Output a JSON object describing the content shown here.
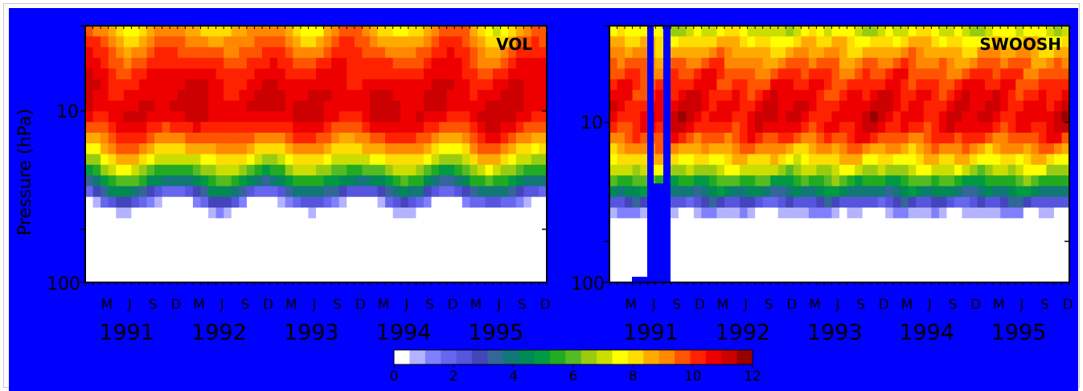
{
  "chart_data": [
    {
      "type": "heatmap",
      "panel": "left",
      "label": "VOL",
      "ylabel": "Pressure (hPa)",
      "y_scale": "log",
      "ylim": [
        100,
        3
      ],
      "y_tick_labels": [
        "10",
        "100"
      ],
      "month_labels": [
        "M",
        "J",
        "S",
        "D",
        "M",
        "J",
        "S",
        "D",
        "M",
        "J",
        "S",
        "D",
        "M",
        "J",
        "S",
        "D",
        "M",
        "J",
        "S",
        "D"
      ],
      "year_labels": [
        "1991",
        "1992",
        "1993",
        "1994",
        "1995"
      ],
      "x_range": [
        "1991-01",
        "1995-12"
      ]
    },
    {
      "type": "heatmap",
      "panel": "right",
      "label": "SWOOSH",
      "ylabel": "",
      "y_scale": "log",
      "ylim": [
        100,
        3
      ],
      "y_tick_labels": [
        "10",
        "100"
      ],
      "month_labels": [
        "M",
        "J",
        "S",
        "D",
        "M",
        "J",
        "S",
        "D",
        "M",
        "J",
        "S",
        "D",
        "M",
        "J",
        "S",
        "D",
        "M",
        "J",
        "S",
        "D"
      ],
      "year_labels": [
        "1991",
        "1992",
        "1993",
        "1994",
        "1995"
      ],
      "x_range": [
        "1991-01",
        "1995-12"
      ],
      "missing_data_note": "gap mid-1991"
    }
  ],
  "colorbar": {
    "ticks": [
      "0",
      "2",
      "4",
      "6",
      "8",
      "10",
      "12"
    ],
    "colors": [
      "#ffffff",
      "#b3b3ff",
      "#8080ff",
      "#6666ee",
      "#5555dd",
      "#4444bb",
      "#336699",
      "#117777",
      "#008855",
      "#009944",
      "#22aa22",
      "#55bb22",
      "#99cc11",
      "#ccdd00",
      "#ffff00",
      "#ffdd00",
      "#ffaa00",
      "#ff8800",
      "#ff5500",
      "#ff2200",
      "#ee0000",
      "#cc0000",
      "#990000"
    ]
  },
  "colors": {
    "background": "#0000ff"
  }
}
